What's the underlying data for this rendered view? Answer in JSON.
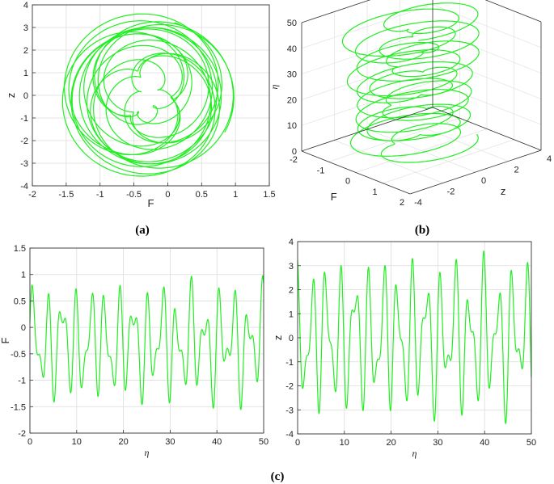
{
  "captions": {
    "a": "(a)",
    "b": "(b)",
    "c": "(c)"
  },
  "colors": {
    "curve": "#22ee22",
    "grid": "#dcdcdc",
    "frame": "#333333"
  },
  "chart_data": [
    {
      "id": "a",
      "type": "line",
      "title": "",
      "xlabel": "F",
      "ylabel": "z",
      "xlim": [
        -2,
        1.5
      ],
      "ylim": [
        -4,
        4
      ],
      "xticks": [
        "-2",
        "-1.5",
        "-1",
        "-0.5",
        "0",
        "0.5",
        "1",
        "1.5"
      ],
      "yticks": [
        "-4",
        "-3",
        "-2",
        "-1",
        "0",
        "1",
        "2",
        "3",
        "4"
      ],
      "grid": true,
      "series": [
        {
          "x_range": [
            -1.9,
            1.25
          ],
          "y_range": [
            -3.8,
            3.8
          ]
        }
      ]
    },
    {
      "id": "b",
      "type": "line",
      "title": "",
      "xlabel": "F",
      "ylabel": "z",
      "zlabel": "η",
      "xlim": [
        -2,
        2
      ],
      "ylim": [
        -4,
        4
      ],
      "zlim": [
        0,
        50
      ],
      "xticks": [
        "-2",
        "-1",
        "0",
        "1",
        "2"
      ],
      "yticks": [
        "-4",
        "-2",
        "0",
        "2",
        "4"
      ],
      "zticks": [
        "0",
        "10",
        "20",
        "30",
        "40",
        "50"
      ],
      "grid": true
    },
    {
      "id": "c1",
      "type": "line",
      "title": "",
      "xlabel": "η",
      "ylabel": "F",
      "xlim": [
        0,
        50
      ],
      "ylim": [
        -2,
        1.5
      ],
      "xticks": [
        "0",
        "10",
        "20",
        "30",
        "40",
        "50"
      ],
      "yticks": [
        "-2",
        "-1.5",
        "-1",
        "-0.5",
        "0",
        "0.5",
        "1",
        "1.5"
      ],
      "grid": true,
      "series": [
        {
          "x_range": [
            0,
            50
          ],
          "y_range": [
            -1.9,
            1.25
          ]
        }
      ]
    },
    {
      "id": "c2",
      "type": "line",
      "title": "",
      "xlabel": "η",
      "ylabel": "z",
      "xlim": [
        0,
        50
      ],
      "ylim": [
        -4,
        4
      ],
      "xticks": [
        "0",
        "10",
        "20",
        "30",
        "40",
        "50"
      ],
      "yticks": [
        "-4",
        "-3",
        "-2",
        "-1",
        "0",
        "1",
        "2",
        "3",
        "4"
      ],
      "grid": true,
      "series": [
        {
          "x_range": [
            0,
            50
          ],
          "y_range": [
            -3.8,
            3.8
          ]
        }
      ]
    }
  ]
}
